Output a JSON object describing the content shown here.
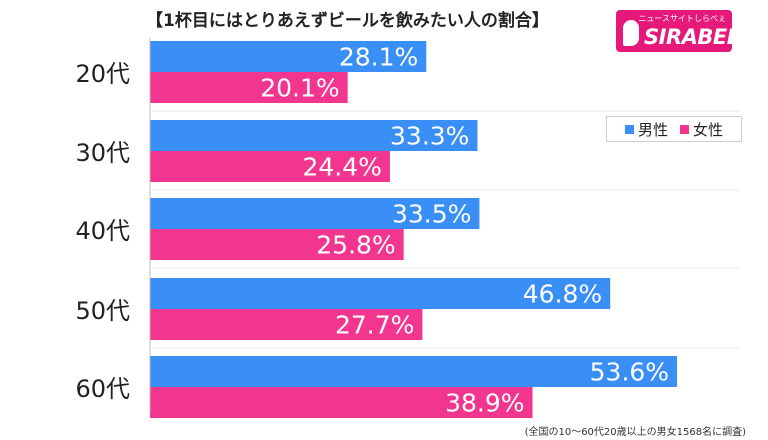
{
  "title": "【1杯目にはとりあえずビールを飲みたい人の割合】",
  "logo": {
    "text": "SIRABEE",
    "subtitle": "ニュースサイトしらべぇ",
    "color": "#e6197a"
  },
  "source_note": "(全国の10〜60代20歳以上の男女1568名に調査)",
  "chart_data": {
    "type": "bar",
    "orientation": "horizontal",
    "title": "【1杯目にはとりあえずビールを飲みたい人の割合】",
    "xlabel": "",
    "ylabel": "",
    "xlim": [
      0,
      60
    ],
    "grid": true,
    "legend": "top-right",
    "categories": [
      "20代",
      "30代",
      "40代",
      "50代",
      "60代"
    ],
    "series": [
      {
        "name": "男性",
        "color": "#3a8ff7",
        "values": [
          28.1,
          33.3,
          33.5,
          46.8,
          53.6
        ]
      },
      {
        "name": "女性",
        "color": "#f2358e",
        "values": [
          20.1,
          24.4,
          25.8,
          27.7,
          38.9
        ]
      }
    ],
    "labels": [
      [
        "28.1%",
        "33.3%",
        "33.5%",
        "46.8%",
        "53.6%"
      ],
      [
        "20.1%",
        "24.4%",
        "25.8%",
        "27.7%",
        "38.9%"
      ]
    ]
  }
}
